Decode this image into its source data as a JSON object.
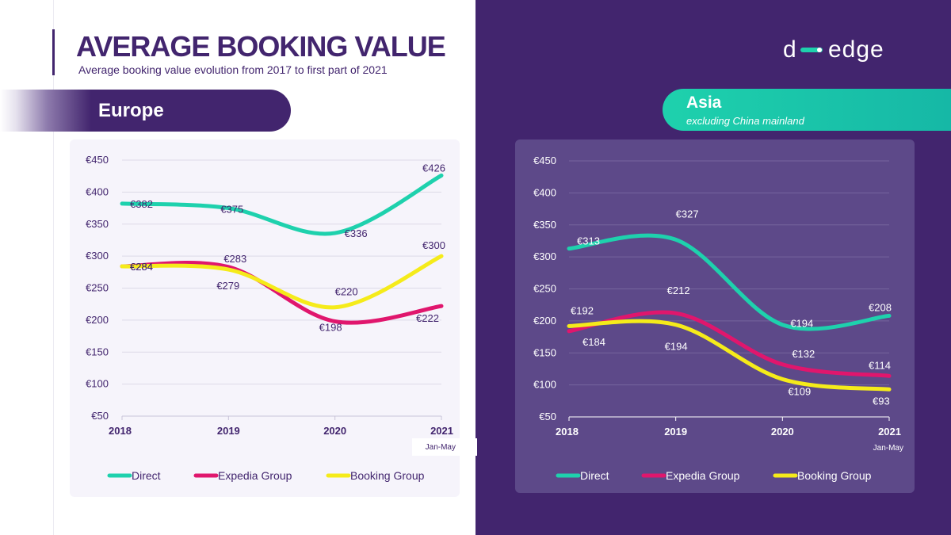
{
  "header": {
    "title": "AVERAGE BOOKING VALUE",
    "subtitle": "Average booking value evolution from 2017 to first part of 2021",
    "logo_text": "d edge"
  },
  "colors": {
    "purple": "#42256e",
    "teal": "#1ed1ad",
    "direct": "#1ed1ad",
    "expedia": "#e0166d",
    "booking": "#f5eb1a"
  },
  "chart_data": [
    {
      "type": "line",
      "region": "Europe",
      "x": [
        "2018",
        "2019",
        "2020",
        "2021"
      ],
      "x_sublabel": "Jan-May",
      "ylim": [
        50,
        450
      ],
      "yticks": [
        "€50",
        "€100",
        "€150",
        "€200",
        "€250",
        "€300",
        "€350",
        "€400",
        "€450"
      ],
      "grid": true,
      "legend": "bottom",
      "series": [
        {
          "name": "Direct",
          "values": [
            382,
            375,
            336,
            426
          ],
          "labels": [
            "€382",
            "€375",
            "€336",
            "€426"
          ]
        },
        {
          "name": "Expedia Group",
          "values": [
            284,
            283,
            198,
            222
          ],
          "labels": [
            "€284",
            "€283",
            "€198",
            "€222"
          ]
        },
        {
          "name": "Booking Group",
          "values": [
            284,
            279,
            220,
            300
          ],
          "labels": [
            "€284",
            "€279",
            "€220",
            "€300"
          ]
        }
      ]
    },
    {
      "type": "line",
      "region": "Asia",
      "region_note": "excluding China mainland",
      "x": [
        "2018",
        "2019",
        "2020",
        "2021"
      ],
      "x_sublabel": "Jan-May",
      "ylim": [
        50,
        450
      ],
      "yticks": [
        "€50",
        "€100",
        "€150",
        "€200",
        "€250",
        "€300",
        "€350",
        "€400",
        "€450"
      ],
      "grid": true,
      "legend": "bottom",
      "series": [
        {
          "name": "Direct",
          "values": [
            313,
            327,
            194,
            208
          ],
          "labels": [
            "€313",
            "€327",
            "€194",
            "€208"
          ]
        },
        {
          "name": "Expedia Group",
          "values": [
            184,
            212,
            132,
            114
          ],
          "labels": [
            "€184",
            "€212",
            "€132",
            "€114"
          ]
        },
        {
          "name": "Booking Group",
          "values": [
            192,
            194,
            109,
            93
          ],
          "labels": [
            "€192",
            "€194",
            "€109",
            "€93"
          ]
        }
      ]
    }
  ]
}
